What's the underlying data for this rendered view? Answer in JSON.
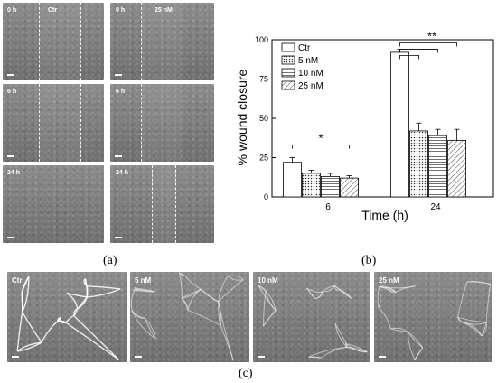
{
  "panel_a": {
    "rows": [
      {
        "left": {
          "time": "0 h",
          "cond": "Ctr"
        },
        "right": {
          "time": "0 h",
          "cond": "25 nM"
        }
      },
      {
        "left": {
          "time": "6 h",
          "cond": ""
        },
        "right": {
          "time": "6 h",
          "cond": ""
        }
      },
      {
        "left": {
          "time": "24 h",
          "cond": ""
        },
        "right": {
          "time": "24 h",
          "cond": ""
        }
      }
    ]
  },
  "panel_c": {
    "images": [
      {
        "label": "Ctr"
      },
      {
        "label": "5 nM"
      },
      {
        "label": "10 nM"
      },
      {
        "label": "25 nM"
      }
    ]
  },
  "captions": {
    "a": "(a)",
    "b": "(b)",
    "c": "(c)"
  },
  "chart_data": {
    "type": "bar",
    "xlabel": "Time (h)",
    "ylabel": "% wound closure",
    "ylim": [
      0,
      100
    ],
    "yticks": [
      0,
      25,
      50,
      75,
      100
    ],
    "categories": [
      "6",
      "24"
    ],
    "series": [
      {
        "name": "Ctr",
        "values": [
          22,
          92
        ],
        "errors": [
          3,
          2
        ],
        "fill": "none"
      },
      {
        "name": "5 nM",
        "values": [
          15,
          42
        ],
        "errors": [
          2,
          5
        ],
        "fill": "dots"
      },
      {
        "name": "10 nM",
        "values": [
          13,
          39
        ],
        "errors": [
          2,
          4
        ],
        "fill": "hlines"
      },
      {
        "name": "25 nM",
        "values": [
          12,
          36
        ],
        "errors": [
          1.5,
          7
        ],
        "fill": "diag"
      }
    ],
    "annotations": [
      {
        "text": "*",
        "category": "6"
      },
      {
        "text": "**",
        "category": "24"
      }
    ],
    "legend": "top-left"
  }
}
